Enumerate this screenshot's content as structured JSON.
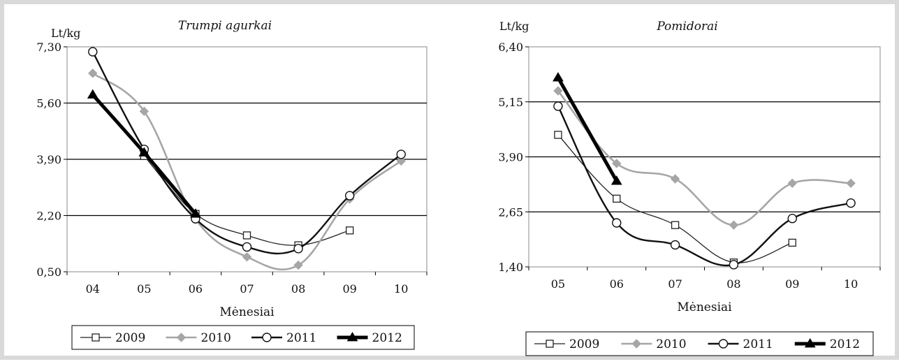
{
  "chart_data": [
    {
      "type": "line",
      "title": "Trumpi agurkai",
      "ylabel": "Lt/kg",
      "xlabel": "Mėnesiai",
      "categories": [
        "04",
        "05",
        "06",
        "07",
        "08",
        "09",
        "10"
      ],
      "yticks": [
        "0,50",
        "2,20",
        "3,90",
        "5,60",
        "7,30"
      ],
      "ylim": [
        0.5,
        7.3
      ],
      "grid": true,
      "legend": "bottom",
      "series": [
        {
          "name": "2009",
          "color": "#222222",
          "marker": "square",
          "values": [
            null,
            4.0,
            2.25,
            1.6,
            1.3,
            1.75,
            null
          ]
        },
        {
          "name": "2010",
          "color": "#a6a6a6",
          "marker": "diamond",
          "values": [
            6.5,
            5.35,
            2.1,
            0.95,
            0.7,
            2.7,
            3.85
          ]
        },
        {
          "name": "2011",
          "color": "#111111",
          "marker": "circle",
          "values": [
            7.15,
            4.2,
            2.1,
            1.25,
            1.2,
            2.8,
            4.05
          ]
        },
        {
          "name": "2012",
          "color": "#000000",
          "marker": "triangle",
          "values": [
            5.85,
            4.1,
            2.25,
            null,
            null,
            null,
            null
          ]
        }
      ]
    },
    {
      "type": "line",
      "title": "Pomidorai",
      "ylabel": "Lt/kg",
      "xlabel": "Mėnesiai",
      "categories": [
        "05",
        "06",
        "07",
        "08",
        "09",
        "10"
      ],
      "yticks": [
        "1,40",
        "2,65",
        "3,90",
        "5,15",
        "6,40"
      ],
      "ylim": [
        1.4,
        6.4
      ],
      "grid": true,
      "legend": "bottom",
      "series": [
        {
          "name": "2009",
          "color": "#222222",
          "marker": "square",
          "values": [
            4.4,
            2.95,
            2.35,
            1.5,
            1.95,
            null
          ]
        },
        {
          "name": "2010",
          "color": "#a6a6a6",
          "marker": "diamond",
          "values": [
            5.4,
            3.75,
            3.4,
            2.35,
            3.3,
            3.3
          ]
        },
        {
          "name": "2011",
          "color": "#111111",
          "marker": "circle",
          "values": [
            5.05,
            2.4,
            1.9,
            1.45,
            2.5,
            2.85
          ]
        },
        {
          "name": "2012",
          "color": "#000000",
          "marker": "triangle",
          "values": [
            5.7,
            3.35,
            null,
            null,
            null,
            null
          ]
        }
      ]
    }
  ]
}
